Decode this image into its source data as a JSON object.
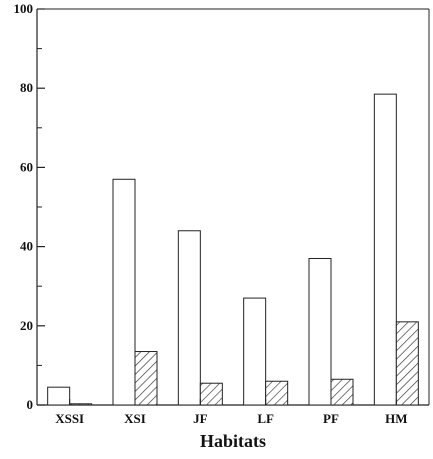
{
  "chart_data": {
    "type": "bar",
    "categories": [
      "XSSI",
      "XSI",
      "JF",
      "LF",
      "PF",
      "HM"
    ],
    "series": [
      {
        "style": "open",
        "values": [
          4.5,
          57,
          44,
          27,
          37,
          78.5
        ]
      },
      {
        "style": "hatched",
        "values": [
          0.3,
          13.5,
          5.5,
          6,
          6.5,
          21
        ]
      }
    ],
    "xlabel": "Habitats",
    "ylabel": "",
    "ylim": [
      0,
      100
    ],
    "yticks": [
      0,
      20,
      40,
      60,
      80,
      100
    ],
    "grid": false,
    "legend": "none",
    "colors": {
      "bar_stroke": "#222222",
      "open_fill": "#ffffff",
      "hatch_stroke": "#333333",
      "axis": "#222222"
    }
  }
}
